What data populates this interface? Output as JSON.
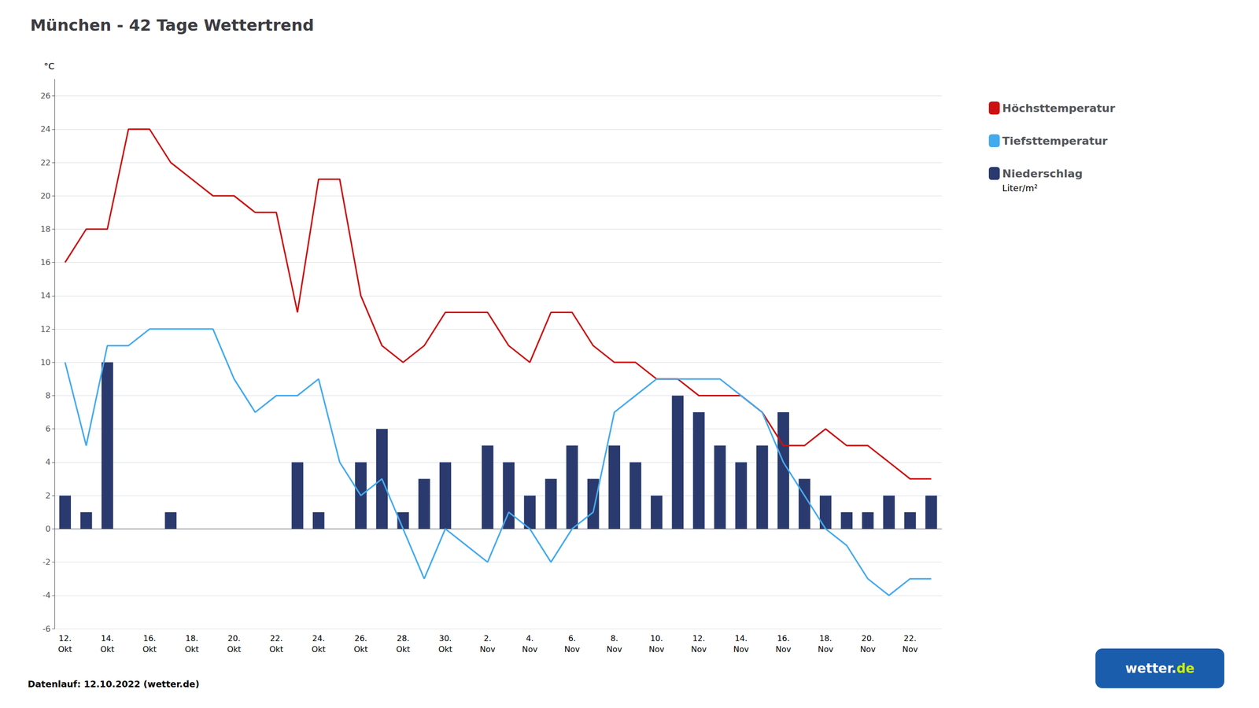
{
  "chart_data": {
    "type": "bar_line",
    "title": "München - 42 Tage Wettertrend",
    "ylabel": "°C",
    "categories": [
      "12.\nOkt",
      null,
      "14.\nOkt",
      null,
      "16.\nOkt",
      null,
      "18.\nOkt",
      null,
      "20.\nOkt",
      null,
      "22.\nOkt",
      null,
      "24.\nOkt",
      null,
      "26.\nOkt",
      null,
      "28.\nOkt",
      null,
      "30.\nOkt",
      null,
      "2.\nNov",
      null,
      "4.\nNov",
      null,
      "6.\nNov",
      null,
      "8.\nNov",
      null,
      "10.\nNov",
      null,
      "12.\nNov",
      null,
      "14.\nNov",
      null,
      "16.\nNov",
      null,
      "18.\nNov",
      null,
      "20.\nNov",
      null,
      "22.\nNov",
      null
    ],
    "series": [
      {
        "name": "Niederschlag",
        "type": "bar",
        "color": "#2a3a6e",
        "values": [
          2,
          1,
          10,
          0,
          0,
          1,
          0,
          0,
          0,
          0,
          0,
          4,
          1,
          0,
          4,
          6,
          1,
          3,
          4,
          0,
          5,
          4,
          2,
          3,
          5,
          3,
          5,
          4,
          2,
          8,
          7,
          5,
          4,
          5,
          7,
          3,
          2,
          1,
          1,
          2,
          1,
          2
        ]
      },
      {
        "name": "Höchsttemperatur",
        "type": "line",
        "color": "#cc1111",
        "values": [
          16,
          18,
          18,
          24,
          24,
          22,
          21,
          20,
          20,
          19,
          19,
          13,
          21,
          21,
          14,
          11,
          10,
          11,
          13,
          13,
          13,
          11,
          10,
          13,
          13,
          11,
          10,
          10,
          9,
          9,
          8,
          8,
          8,
          7,
          5,
          5,
          6,
          5,
          5,
          4,
          3,
          3
        ]
      },
      {
        "name": "Tiefsttemperatur",
        "type": "line",
        "color": "#44aaee",
        "values": [
          10,
          5,
          11,
          11,
          12,
          12,
          12,
          12,
          9,
          7,
          8,
          8,
          9,
          4,
          2,
          3,
          0,
          -3,
          0,
          -1,
          -2,
          1,
          0,
          -2,
          0,
          1,
          7,
          8,
          9,
          9,
          9,
          9,
          8,
          7,
          4,
          2,
          0,
          -1,
          -3,
          -4,
          -3,
          -3
        ]
      }
    ],
    "ylim": [
      -6,
      27
    ],
    "yticks": [
      26,
      24,
      22,
      20,
      18,
      16,
      14,
      12,
      10,
      8,
      6,
      4,
      2,
      0,
      -2,
      -4,
      -6
    ],
    "grid": true,
    "legend": "upper right",
    "annotations": [
      "Liter/m²",
      "Datenlauf: 12.10.2022 (wetter.de)",
      "wetter.",
      "de"
    ]
  }
}
